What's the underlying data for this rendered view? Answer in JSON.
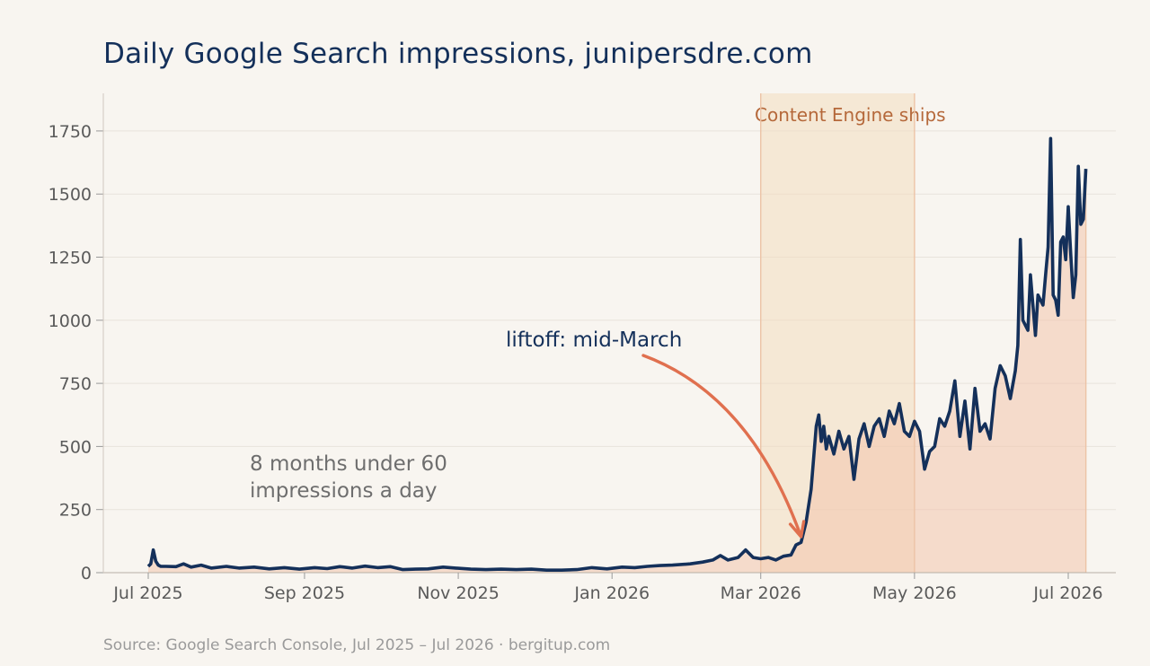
{
  "title": "Daily Google Search impressions, junipersdre.com",
  "source": "Source: Google Search Console, Jul 2025 – Jul 2026 · bergitup.com",
  "colors": {
    "line": "#14305a",
    "area": "#f2c4ad",
    "shade": "#f3dcbf",
    "arrow": "#e0704f",
    "grid": "#e8e3dc"
  },
  "chart_data": {
    "type": "area",
    "xlabel": "",
    "ylabel": "",
    "ylim": [
      0,
      1800
    ],
    "y_ticks": [
      0,
      250,
      500,
      750,
      1000,
      1250,
      1500,
      1750
    ],
    "x_ticks": [
      "Jul 2025",
      "Sep 2025",
      "Nov 2025",
      "Jan 2026",
      "Mar 2026",
      "May 2026",
      "Jul 2026"
    ],
    "x_tick_dates": [
      "2025-07-01",
      "2025-09-01",
      "2025-11-01",
      "2026-01-01",
      "2026-03-01",
      "2026-05-01",
      "2026-07-01"
    ],
    "grid": true,
    "shaded_region": {
      "start": "2026-03-01",
      "end": "2026-05-01",
      "label": "Content Engine ships"
    },
    "annotations": [
      {
        "text": "liftoff: mid-March",
        "points_to": "2026-03-17"
      },
      {
        "text": [
          "8 months under 60",
          "impressions a day"
        ]
      }
    ],
    "series": [
      {
        "points": [
          [
            "2025-07-01",
            25
          ],
          [
            "2025-07-02",
            35
          ],
          [
            "2025-07-03",
            90
          ],
          [
            "2025-07-04",
            45
          ],
          [
            "2025-07-05",
            30
          ],
          [
            "2025-07-06",
            25
          ],
          [
            "2025-07-08",
            25
          ],
          [
            "2025-07-12",
            24
          ],
          [
            "2025-07-15",
            35
          ],
          [
            "2025-07-18",
            22
          ],
          [
            "2025-07-22",
            30
          ],
          [
            "2025-07-26",
            18
          ],
          [
            "2025-08-01",
            25
          ],
          [
            "2025-08-06",
            18
          ],
          [
            "2025-08-12",
            22
          ],
          [
            "2025-08-18",
            15
          ],
          [
            "2025-08-24",
            20
          ],
          [
            "2025-08-30",
            14
          ],
          [
            "2025-09-05",
            20
          ],
          [
            "2025-09-10",
            16
          ],
          [
            "2025-09-15",
            24
          ],
          [
            "2025-09-20",
            18
          ],
          [
            "2025-09-25",
            26
          ],
          [
            "2025-09-30",
            20
          ],
          [
            "2025-10-05",
            24
          ],
          [
            "2025-10-10",
            12
          ],
          [
            "2025-10-15",
            14
          ],
          [
            "2025-10-20",
            15
          ],
          [
            "2025-10-26",
            22
          ],
          [
            "2025-10-31",
            18
          ],
          [
            "2025-11-06",
            14
          ],
          [
            "2025-11-12",
            12
          ],
          [
            "2025-11-18",
            14
          ],
          [
            "2025-11-24",
            12
          ],
          [
            "2025-11-30",
            14
          ],
          [
            "2025-12-06",
            10
          ],
          [
            "2025-12-12",
            10
          ],
          [
            "2025-12-18",
            12
          ],
          [
            "2025-12-24",
            20
          ],
          [
            "2025-12-30",
            15
          ],
          [
            "2026-01-05",
            22
          ],
          [
            "2026-01-10",
            20
          ],
          [
            "2026-01-15",
            25
          ],
          [
            "2026-01-20",
            28
          ],
          [
            "2026-01-25",
            30
          ],
          [
            "2026-02-01",
            35
          ],
          [
            "2026-02-06",
            42
          ],
          [
            "2026-02-10",
            50
          ],
          [
            "2026-02-13",
            68
          ],
          [
            "2026-02-16",
            50
          ],
          [
            "2026-02-20",
            60
          ],
          [
            "2026-02-23",
            90
          ],
          [
            "2026-02-26",
            60
          ],
          [
            "2026-03-01",
            55
          ],
          [
            "2026-03-04",
            60
          ],
          [
            "2026-03-07",
            50
          ],
          [
            "2026-03-10",
            65
          ],
          [
            "2026-03-13",
            70
          ],
          [
            "2026-03-15",
            110
          ],
          [
            "2026-03-17",
            120
          ],
          [
            "2026-03-19",
            200
          ],
          [
            "2026-03-21",
            330
          ],
          [
            "2026-03-23",
            580
          ],
          [
            "2026-03-24",
            625
          ],
          [
            "2026-03-25",
            520
          ],
          [
            "2026-03-26",
            580
          ],
          [
            "2026-03-27",
            490
          ],
          [
            "2026-03-28",
            540
          ],
          [
            "2026-03-30",
            470
          ],
          [
            "2026-04-01",
            560
          ],
          [
            "2026-04-03",
            490
          ],
          [
            "2026-04-05",
            540
          ],
          [
            "2026-04-07",
            370
          ],
          [
            "2026-04-09",
            530
          ],
          [
            "2026-04-11",
            590
          ],
          [
            "2026-04-13",
            500
          ],
          [
            "2026-04-15",
            580
          ],
          [
            "2026-04-17",
            610
          ],
          [
            "2026-04-19",
            540
          ],
          [
            "2026-04-21",
            640
          ],
          [
            "2026-04-23",
            590
          ],
          [
            "2026-04-25",
            670
          ],
          [
            "2026-04-27",
            560
          ],
          [
            "2026-04-29",
            540
          ],
          [
            "2026-05-01",
            600
          ],
          [
            "2026-05-03",
            560
          ],
          [
            "2026-05-05",
            410
          ],
          [
            "2026-05-07",
            480
          ],
          [
            "2026-05-09",
            500
          ],
          [
            "2026-05-11",
            610
          ],
          [
            "2026-05-13",
            580
          ],
          [
            "2026-05-15",
            640
          ],
          [
            "2026-05-17",
            760
          ],
          [
            "2026-05-19",
            540
          ],
          [
            "2026-05-21",
            680
          ],
          [
            "2026-05-23",
            490
          ],
          [
            "2026-05-25",
            730
          ],
          [
            "2026-05-27",
            560
          ],
          [
            "2026-05-29",
            590
          ],
          [
            "2026-05-31",
            530
          ],
          [
            "2026-06-02",
            730
          ],
          [
            "2026-06-04",
            820
          ],
          [
            "2026-06-06",
            780
          ],
          [
            "2026-06-08",
            690
          ],
          [
            "2026-06-10",
            800
          ],
          [
            "2026-06-11",
            900
          ],
          [
            "2026-06-12",
            1320
          ],
          [
            "2026-06-13",
            1000
          ],
          [
            "2026-06-15",
            960
          ],
          [
            "2026-06-16",
            1180
          ],
          [
            "2026-06-18",
            940
          ],
          [
            "2026-06-19",
            1100
          ],
          [
            "2026-06-21",
            1060
          ],
          [
            "2026-06-22",
            1180
          ],
          [
            "2026-06-23",
            1290
          ],
          [
            "2026-06-24",
            1720
          ],
          [
            "2026-06-25",
            1100
          ],
          [
            "2026-06-26",
            1080
          ],
          [
            "2026-06-27",
            1020
          ],
          [
            "2026-06-28",
            1310
          ],
          [
            "2026-06-29",
            1330
          ],
          [
            "2026-06-30",
            1240
          ],
          [
            "2026-07-01",
            1450
          ],
          [
            "2026-07-02",
            1260
          ],
          [
            "2026-07-03",
            1090
          ],
          [
            "2026-07-04",
            1180
          ],
          [
            "2026-07-05",
            1610
          ],
          [
            "2026-07-06",
            1380
          ],
          [
            "2026-07-07",
            1400
          ],
          [
            "2026-07-08",
            1600
          ]
        ]
      }
    ]
  }
}
